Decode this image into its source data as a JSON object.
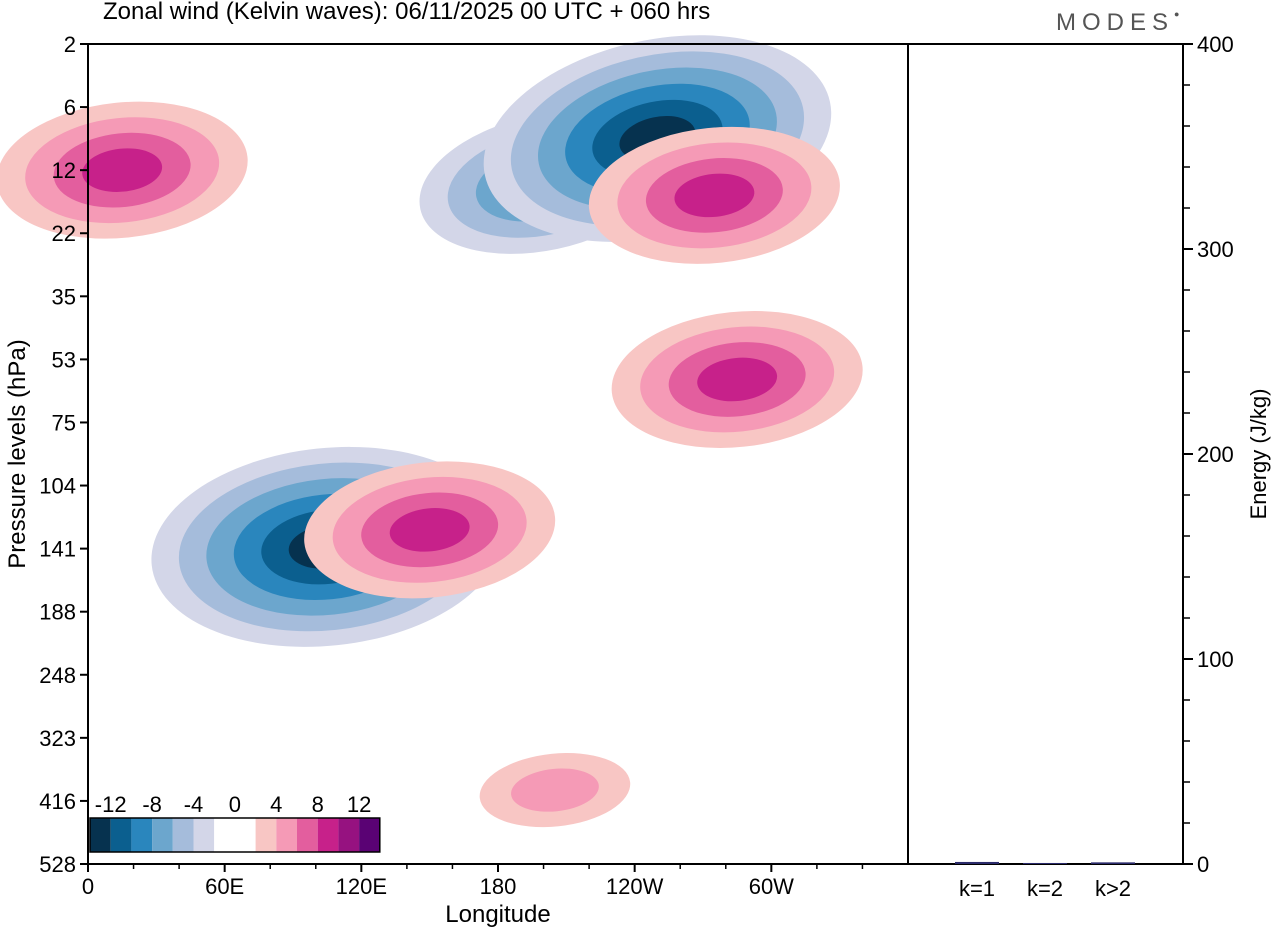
{
  "header": {
    "title": "Zonal wind (Kelvin waves):  06/11/2025  00 UTC  + 060 hrs",
    "brand": "MODES"
  },
  "chart_data": [
    {
      "type": "heatmap",
      "title": "Zonal wind (Kelvin waves):  06/11/2025  00 UTC  + 060 hrs",
      "xlabel": "Longitude",
      "ylabel": "Pressure levels (hPa)",
      "x_ticks": [
        "0",
        "60E",
        "120E",
        "180",
        "120W",
        "60W"
      ],
      "y_ticks": [
        "2",
        "6",
        "12",
        "22",
        "35",
        "53",
        "75",
        "104",
        "141",
        "188",
        "248",
        "323",
        "416",
        "528"
      ],
      "legend_labels": [
        "-12",
        "-8",
        "-4",
        "0",
        "4",
        "8",
        "12"
      ],
      "legend_colors": [
        "#06324f",
        "#0b5f8f",
        "#2a86bd",
        "#6ca6cd",
        "#a5bcdb",
        "#d3d6e8",
        "#ffffff",
        "#ffffff",
        "#f8c6c4",
        "#f59ab6",
        "#e35e9e",
        "#c7218a",
        "#961280",
        "#5a0274"
      ],
      "features": [
        {
          "sign": "negative",
          "x": 105,
          "y": 140,
          "peak": -12
        },
        {
          "sign": "positive",
          "x": 150,
          "y": 130,
          "peak": 8
        },
        {
          "sign": "negative",
          "x": 200,
          "y": 14,
          "peak": -8
        },
        {
          "sign": "negative",
          "x": 250,
          "y": 9,
          "peak": -12
        },
        {
          "sign": "positive",
          "x": 275,
          "y": 16,
          "peak": 8
        },
        {
          "sign": "positive",
          "x": 15,
          "y": 12,
          "peak": 8
        },
        {
          "sign": "positive",
          "x": 285,
          "y": 60,
          "peak": 8
        },
        {
          "sign": "positive",
          "x": 205,
          "y": 400,
          "peak": 4
        }
      ]
    },
    {
      "type": "bar",
      "ylabel": "Energy (J/kg)",
      "categories": [
        "k=1",
        "k=2",
        "k>2"
      ],
      "values": [
        1,
        0.5,
        0.8
      ],
      "ylim": [
        0,
        400
      ],
      "y_ticks": [
        "0",
        "100",
        "200",
        "300",
        "400"
      ]
    }
  ]
}
